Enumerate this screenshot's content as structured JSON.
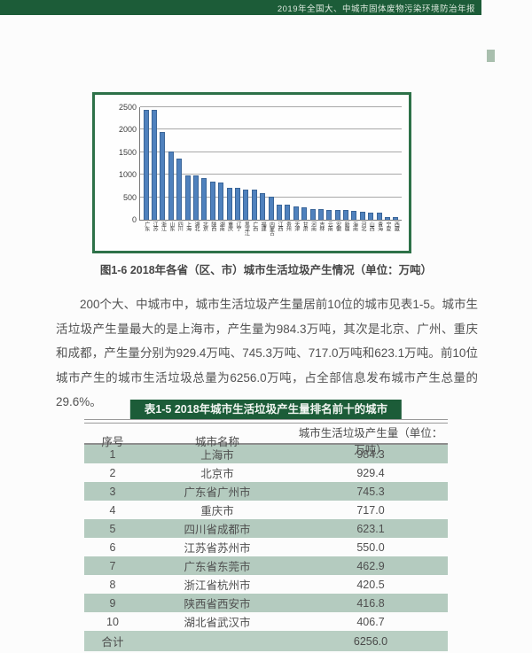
{
  "header": {
    "banner_text": "2019年全国大、中城市固体废物污染环境防治年报"
  },
  "chart_data": {
    "type": "bar",
    "title": "图1-6　2018年各省（区、市）城市生活垃圾产生情况（单位：万吨）",
    "categories": [
      "广东",
      "江苏",
      "浙江",
      "山东",
      "四川",
      "上海",
      "湖北",
      "北京",
      "陕西",
      "湖南",
      "重庆",
      "辽宁",
      "黑龙江",
      "广西",
      "福建",
      "内蒙古",
      "江西",
      "贵州",
      "天津",
      "甘肃",
      "河南",
      "吉林",
      "云南",
      "安徽",
      "新疆",
      "海南",
      "河北",
      "山西",
      "青海",
      "宁夏",
      "西藏"
    ],
    "values": [
      2450,
      2440,
      1950,
      1520,
      1350,
      984,
      975,
      929,
      840,
      820,
      717,
      700,
      672,
      665,
      590,
      520,
      332,
      328,
      300,
      283,
      245,
      232,
      222,
      215,
      208,
      190,
      175,
      163,
      150,
      62,
      50
    ],
    "xlabel": "",
    "ylabel": "",
    "ylim": [
      0,
      2500
    ],
    "yticks": [
      0,
      500,
      1000,
      1500,
      2000,
      2500
    ],
    "grid": true,
    "legend": "none",
    "bar_color": "#4f81bd"
  },
  "figure": {
    "caption": "图1-6  2018年各省（区、市）城市生活垃圾产生情况（单位：万吨）"
  },
  "paragraph": {
    "text": "200个大、中城市中，城市生活垃圾产生量居前10位的城市见表1-5。城市生活垃圾产生量最大的是上海市，产生量为984.3万吨，其次是北京、广州、重庆和成都，产生量分别为929.4万吨、745.3万吨、717.0万吨和623.1万吨。前10位城市产生的城市生活垃圾总量为6256.0万吨，占全部信息发布城市产生总量的29.6%。"
  },
  "table": {
    "title": "表1-5  2018年城市生活垃圾产生量排名前十的城市",
    "headers": [
      "序号",
      "城市名称",
      "城市生活垃圾产生量（单位：万吨）"
    ],
    "rows": [
      {
        "rank": "1",
        "city": "上海市",
        "value": "984.3"
      },
      {
        "rank": "2",
        "city": "北京市",
        "value": "929.4"
      },
      {
        "rank": "3",
        "city": "广东省广州市",
        "value": "745.3"
      },
      {
        "rank": "4",
        "city": "重庆市",
        "value": "717.0"
      },
      {
        "rank": "5",
        "city": "四川省成都市",
        "value": "623.1"
      },
      {
        "rank": "6",
        "city": "江苏省苏州市",
        "value": "550.0"
      },
      {
        "rank": "7",
        "city": "广东省东莞市",
        "value": "462.9"
      },
      {
        "rank": "8",
        "city": "浙江省杭州市",
        "value": "420.5"
      },
      {
        "rank": "9",
        "city": "陕西省西安市",
        "value": "416.8"
      },
      {
        "rank": "10",
        "city": "湖北省武汉市",
        "value": "406.7"
      }
    ],
    "total_row": {
      "label": "合计",
      "city": "",
      "value": "6256.0"
    }
  },
  "colors": {
    "brand_green": "#1c5c38",
    "row_shade_green": "#b4cbbf",
    "bar_blue": "#4f81bd",
    "chart_border_green": "#2d7148"
  }
}
